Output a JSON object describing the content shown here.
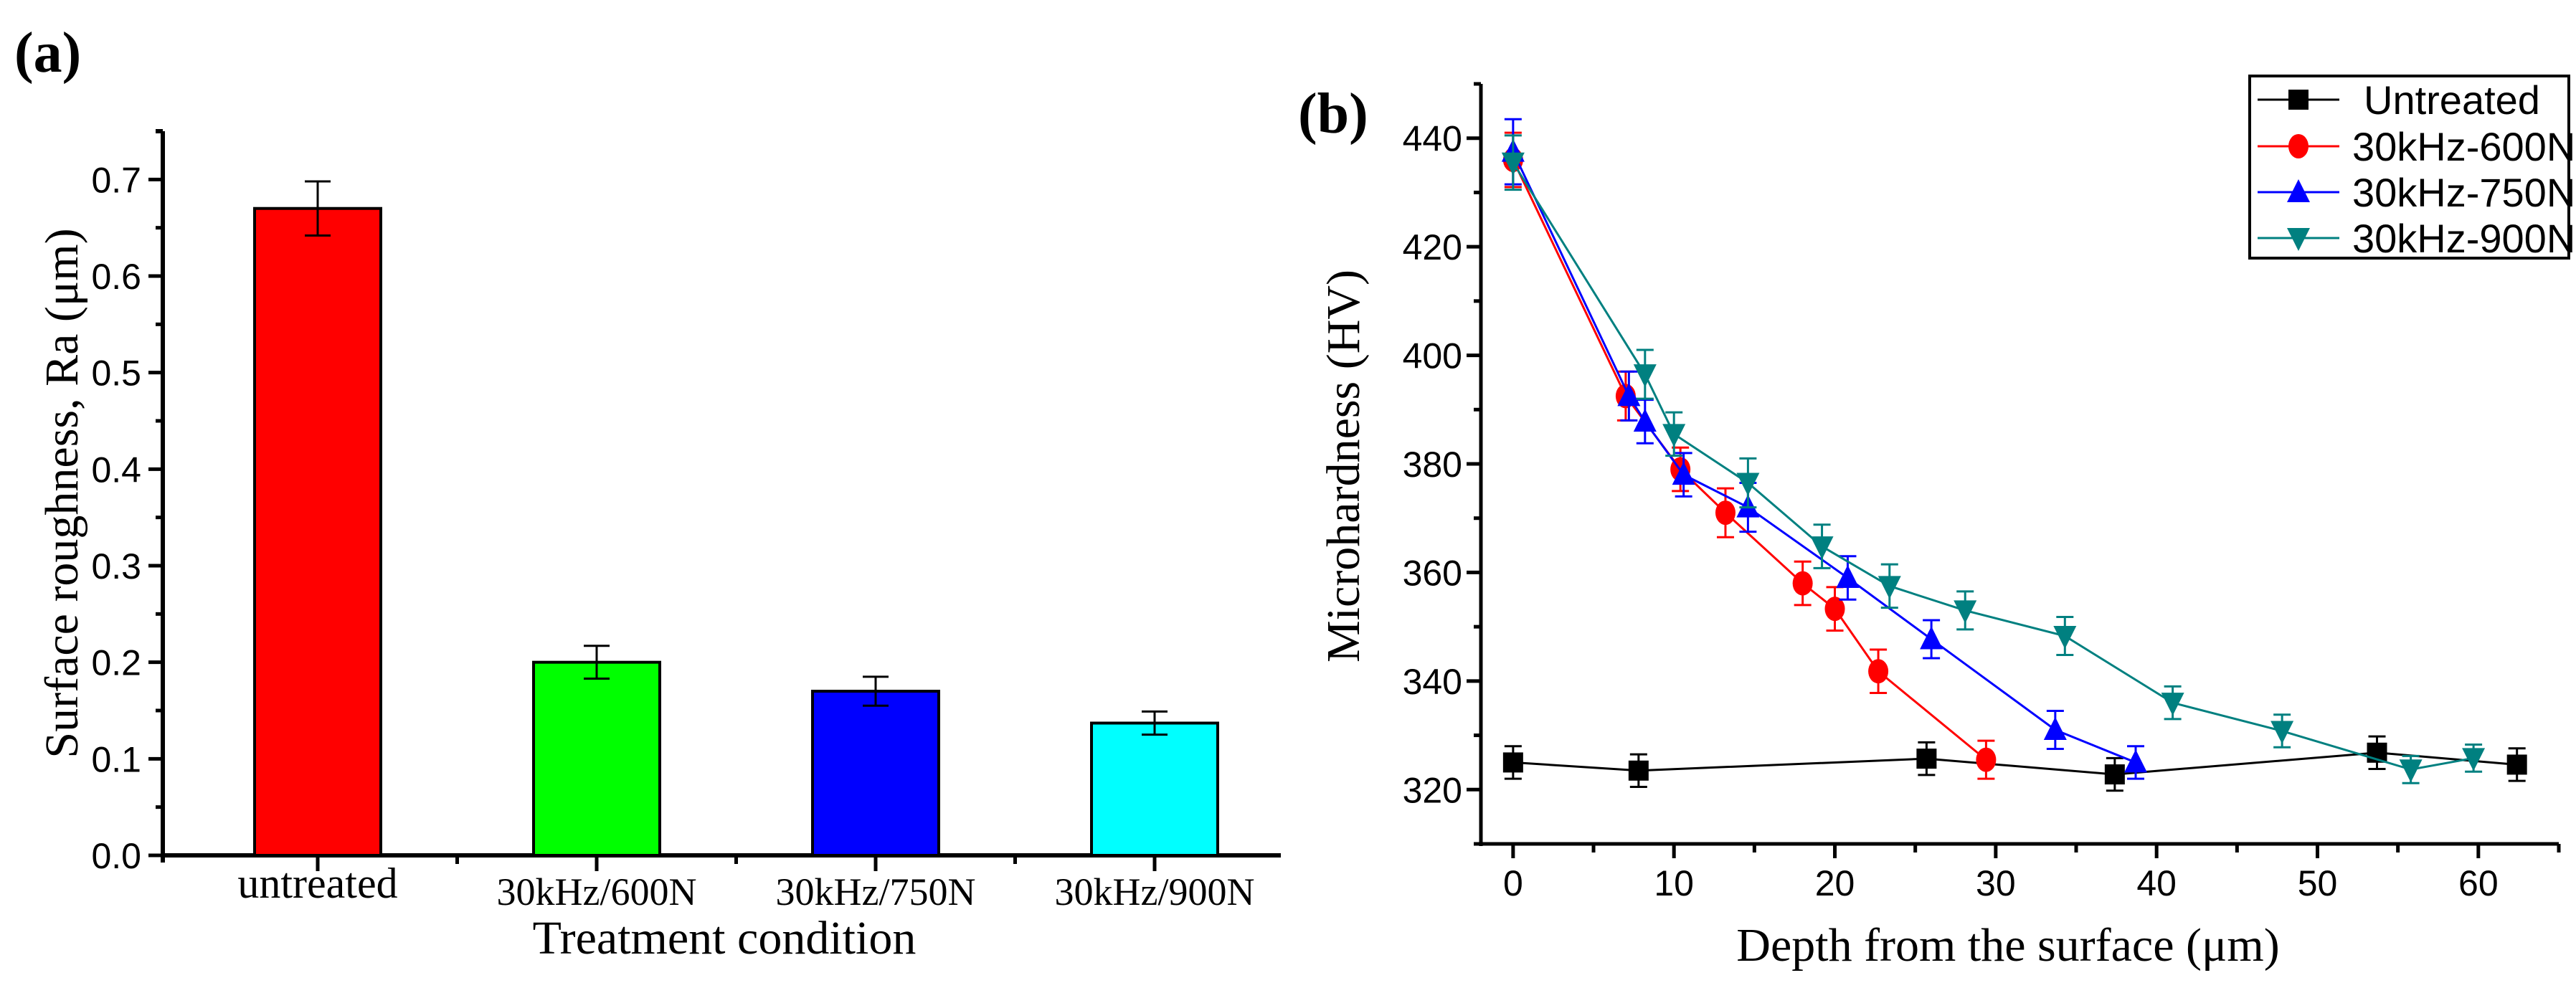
{
  "chart_data": [
    {
      "type": "bar",
      "panel_label": "(a)",
      "title": "",
      "xlabel": "Treatment condition",
      "ylabel": "Surface roughness, Ra (μm)",
      "categories": [
        "untreated",
        "30kHz/600N",
        "30kHz/750N",
        "30kHz/900N"
      ],
      "values": [
        0.67,
        0.2,
        0.17,
        0.137
      ],
      "errors": [
        0.028,
        0.017,
        0.015,
        0.012
      ],
      "colors": [
        "#ff0000",
        "#00ff00",
        "#0000ff",
        "#00ffff"
      ],
      "ylim": [
        0,
        0.75
      ],
      "yticks": [
        "0.0",
        "0.1",
        "0.2",
        "0.3",
        "0.4",
        "0.5",
        "0.6",
        "0.7"
      ],
      "grid": false
    },
    {
      "type": "line",
      "panel_label": "(b)",
      "title": "",
      "xlabel": "Depth from the surface (μm)",
      "ylabel": "Microhardness (HV)",
      "xlim": [
        -2,
        65
      ],
      "ylim": [
        310,
        450
      ],
      "xticks": [
        "0",
        "10",
        "20",
        "30",
        "40",
        "50",
        "60"
      ],
      "yticks": [
        "320",
        "340",
        "360",
        "380",
        "400",
        "420",
        "440"
      ],
      "legend_position": "top-right",
      "grid": false,
      "series": [
        {
          "name": "Untreated",
          "color": "#000000",
          "marker": "square",
          "x": [
            0,
            7.8,
            25.7,
            37.4,
            53.7,
            62.4
          ],
          "y": [
            325,
            323.5,
            325.7,
            322.8,
            326.8,
            324.6
          ],
          "err": [
            3,
            3,
            3,
            3,
            3,
            3
          ]
        },
        {
          "name": "30kHz-600N",
          "color": "#ff0000",
          "marker": "circle",
          "x": [
            0,
            7,
            10.4,
            13.2,
            18,
            20,
            22.7,
            29.4
          ],
          "y": [
            436,
            392.5,
            379,
            371,
            358,
            353.3,
            341.8,
            325.5
          ],
          "err": [
            5,
            4.5,
            4,
            4.5,
            4,
            4,
            4,
            3.5
          ]
        },
        {
          "name": "30kHz-750N",
          "color": "#0000ff",
          "marker": "triangle-up",
          "x": [
            0,
            7.2,
            8.2,
            10.6,
            14.6,
            20.8,
            26,
            33.7,
            38.7
          ],
          "y": [
            437.5,
            392.5,
            387.8,
            378,
            372,
            359,
            347.7,
            331,
            325
          ],
          "err": [
            6,
            4.5,
            4,
            4,
            4.5,
            4,
            3.5,
            3.5,
            3
          ]
        },
        {
          "name": "30kHz-900N",
          "color": "#008080",
          "marker": "triangle-down",
          "x": [
            0,
            8.2,
            10,
            14.6,
            19.2,
            23.4,
            28.1,
            34.3,
            41,
            47.8,
            55.8,
            59.7
          ],
          "y": [
            435.5,
            396.5,
            385.5,
            376.5,
            364.8,
            357.5,
            353,
            348.3,
            336,
            330.8,
            323.7,
            325.8
          ],
          "err": [
            5,
            4.5,
            4,
            4.5,
            4,
            4,
            3.5,
            3.5,
            3,
            3,
            2.5,
            2.5
          ]
        }
      ]
    }
  ]
}
